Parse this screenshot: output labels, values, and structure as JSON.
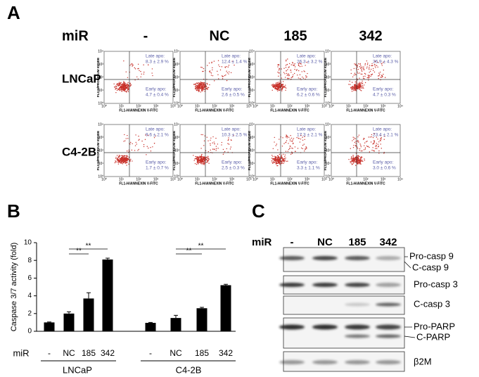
{
  "panel_a": {
    "letter": "A",
    "mir_label": "miR",
    "columns": [
      "-",
      "NC",
      "185",
      "342"
    ],
    "late_label": "Late apo:",
    "early_label": "Early apo:",
    "x_axis_label": "FL1-H/ANNEXIN V-FITC",
    "y_axis_label": "FL2-H/PROPIDIUM IODIDE",
    "axis_ticks": [
      "10⁰",
      "10¹",
      "10²",
      "10³",
      "10⁴"
    ],
    "rows": [
      {
        "label": "LNCaP",
        "plots": [
          {
            "late": "8.3 ± 2.9 %",
            "early": "4.7 ± 0.4 %"
          },
          {
            "late": "12.4 ± 1.4 %",
            "early": "2.6 ± 0.5 %"
          },
          {
            "late": "26.3 ± 3.2 %",
            "early": "6.2 ± 0.6 %"
          },
          {
            "late": "36.9 ± 4.3 %",
            "early": "4.7 ± 0.3 %"
          }
        ]
      },
      {
        "label": "C4-2B",
        "plots": [
          {
            "late": "9.6 ± 2.1 %",
            "early": "1.7 ± 0.7 %"
          },
          {
            "late": "10.3 ± 2.5 %",
            "early": "2.5 ± 0.3 %"
          },
          {
            "late": "17.3 ± 2.1 %",
            "early": "3.3 ± 1.1 %"
          },
          {
            "late": "23.4 ± 2.1 %",
            "early": "3.0 ± 0.6 %"
          }
        ]
      }
    ]
  },
  "chart_data": {
    "type": "bar",
    "letter": "B",
    "ylabel": "Caspase 3/7 activity (fold)",
    "x_prefix": "miR",
    "categories": [
      "-",
      "NC",
      "185",
      "342",
      "-",
      "NC",
      "185",
      "342"
    ],
    "values": [
      1.0,
      2.0,
      3.7,
      8.1,
      0.95,
      1.5,
      2.6,
      5.2
    ],
    "errors": [
      0.05,
      0.2,
      0.65,
      0.15,
      0.05,
      0.3,
      0.1,
      0.1
    ],
    "color": "#000000",
    "groups": [
      "LNCaP",
      "C4-2B"
    ],
    "annotations": [
      "**",
      "**",
      "**",
      "**"
    ],
    "ylim": [
      0,
      10
    ],
    "yticks": [
      0,
      2,
      4,
      6,
      8,
      10
    ],
    "grid": false
  },
  "panel_c": {
    "letter": "C",
    "mir_label": "miR",
    "lanes": [
      "-",
      "NC",
      "185",
      "342"
    ],
    "bands": [
      "Pro-casp 9",
      "C-casp 9",
      "Pro-casp 3",
      "C-casp 3",
      "Pro-PARP",
      "C-PARP",
      "β2M"
    ]
  }
}
